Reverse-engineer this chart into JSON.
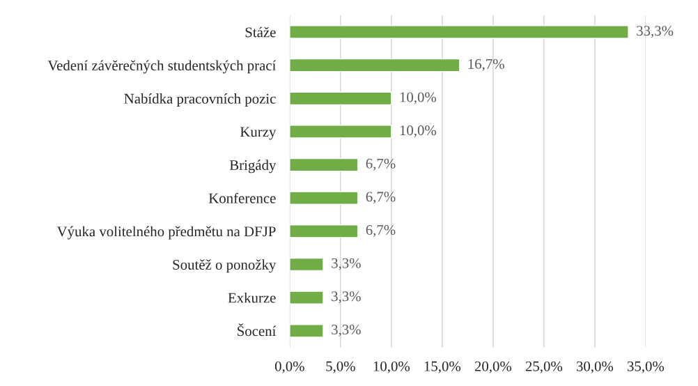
{
  "chart_data": {
    "type": "bar",
    "orientation": "horizontal",
    "categories": [
      "Stáže",
      "Vedení závěrečných studentských prací",
      "Nabídka pracovních pozic",
      "Kurzy",
      "Brigády",
      "Konference",
      "Výuka volitelného předmětu na DFJP",
      "Soutěž o ponožky",
      "Exkurze",
      "Šocení"
    ],
    "values": [
      33.3,
      16.7,
      10.0,
      10.0,
      6.7,
      6.7,
      6.7,
      3.3,
      3.3,
      3.3
    ],
    "value_labels": [
      "33,3%",
      "16,7%",
      "10,0%",
      "10,0%",
      "6,7%",
      "6,7%",
      "6,7%",
      "3,3%",
      "3,3%",
      "3,3%"
    ],
    "color": "#70ad47",
    "xlim": [
      0,
      35
    ],
    "xticks": [
      {
        "value": 0,
        "label": "0,0%"
      },
      {
        "value": 5,
        "label": "5,0%"
      },
      {
        "value": 10,
        "label": "10,0%"
      },
      {
        "value": 15,
        "label": "15,0%"
      },
      {
        "value": 20,
        "label": "20,0%"
      },
      {
        "value": 25,
        "label": "25,0%"
      },
      {
        "value": 30,
        "label": "30,0%"
      },
      {
        "value": 35,
        "label": "35,0%"
      }
    ],
    "grid": "x"
  }
}
